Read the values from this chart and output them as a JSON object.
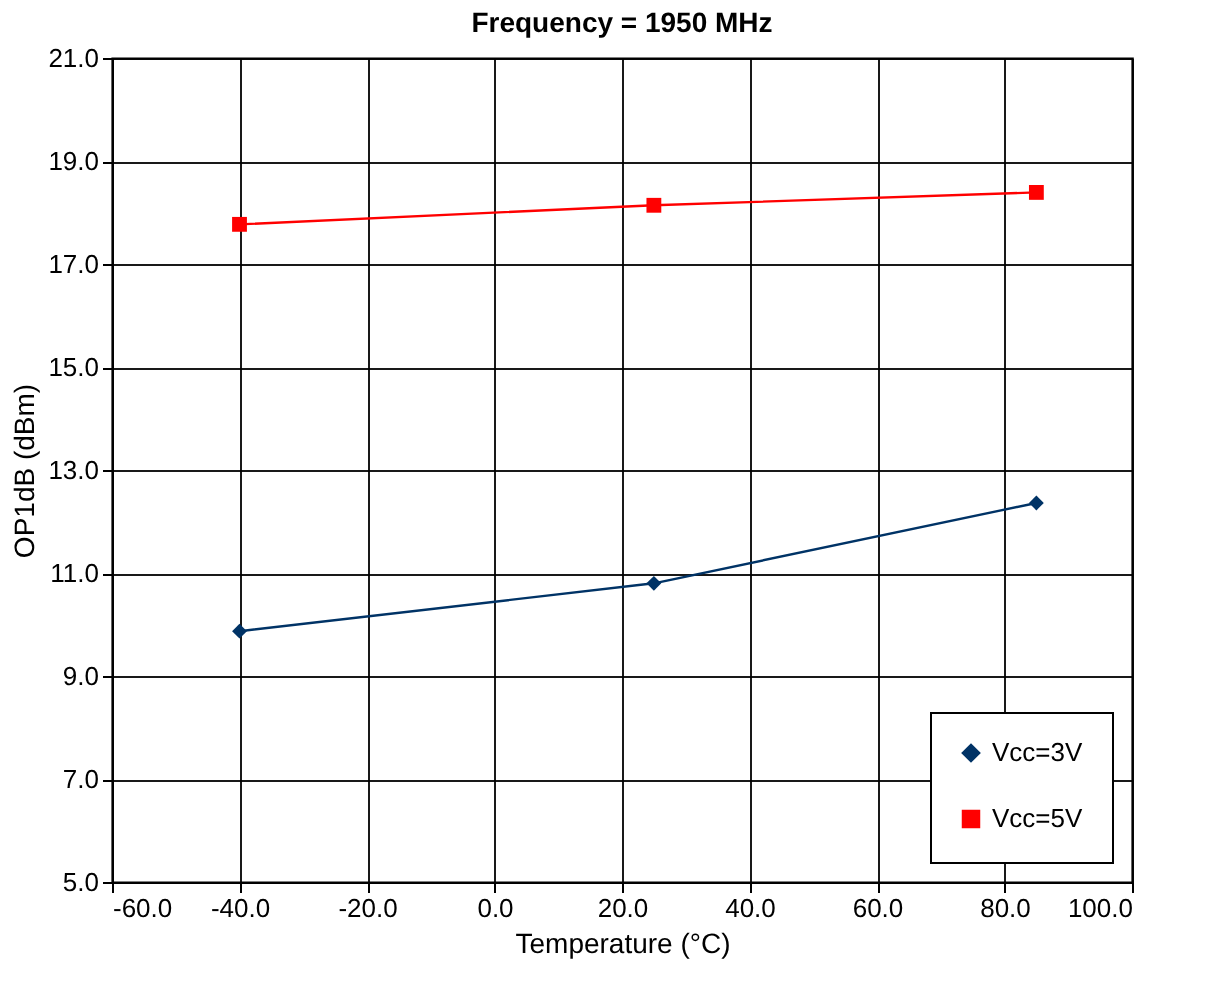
{
  "chart_data": {
    "type": "line",
    "title": "Frequency = 1950 MHz",
    "xlabel": "Temperature (°C)",
    "ylabel": "OP1dB (dBm)",
    "x": [
      -40,
      25,
      85
    ],
    "series": [
      {
        "name": "Vcc=3V",
        "color": "#003366",
        "marker": "diamond",
        "values": [
          9.87,
          10.8,
          12.36
        ]
      },
      {
        "name": "Vcc=5V",
        "color": "#ff0000",
        "marker": "square",
        "values": [
          17.77,
          18.14,
          18.39
        ]
      }
    ],
    "xlim": [
      -60,
      100
    ],
    "xticks": [
      {
        "value": -60,
        "label": "-60.0"
      },
      {
        "value": -40,
        "label": "-40.0"
      },
      {
        "value": -20,
        "label": "-20.0"
      },
      {
        "value": 0,
        "label": "0.0"
      },
      {
        "value": 20,
        "label": "20.0"
      },
      {
        "value": 40,
        "label": "40.0"
      },
      {
        "value": 60,
        "label": "60.0"
      },
      {
        "value": 80,
        "label": "80.0"
      },
      {
        "value": 100,
        "label": "100.0"
      }
    ],
    "ylim": [
      5,
      21
    ],
    "yticks": [
      {
        "value": 5,
        "label": "5.0"
      },
      {
        "value": 7,
        "label": "7.0"
      },
      {
        "value": 9,
        "label": "9.0"
      },
      {
        "value": 11,
        "label": "11.0"
      },
      {
        "value": 13,
        "label": "13.0"
      },
      {
        "value": 15,
        "label": "15.0"
      },
      {
        "value": 17,
        "label": "17.0"
      },
      {
        "value": 19,
        "label": "19.0"
      },
      {
        "value": 21,
        "label": "21.0"
      }
    ],
    "grid": true,
    "legend": "bottom right",
    "line_style": "solid"
  }
}
